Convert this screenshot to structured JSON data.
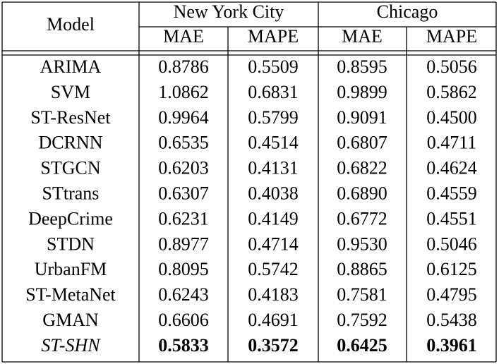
{
  "table": {
    "header": {
      "model": "Model",
      "groups": [
        "New York City",
        "Chicago"
      ],
      "metrics": [
        "MAE",
        "MAPE",
        "MAE",
        "MAPE"
      ]
    },
    "rows": [
      {
        "model": "ARIMA",
        "values": [
          "0.8786",
          "0.5509",
          "0.8595",
          "0.5056"
        ]
      },
      {
        "model": "SVM",
        "values": [
          "1.0862",
          "0.6831",
          "0.9899",
          "0.5862"
        ]
      },
      {
        "model": "ST-ResNet",
        "values": [
          "0.9964",
          "0.5799",
          "0.9091",
          "0.4500"
        ]
      },
      {
        "model": "DCRNN",
        "values": [
          "0.6535",
          "0.4514",
          "0.6807",
          "0.4711"
        ]
      },
      {
        "model": "STGCN",
        "values": [
          "0.6203",
          "0.4131",
          "0.6822",
          "0.4624"
        ]
      },
      {
        "model": "STtrans",
        "values": [
          "0.6307",
          "0.4038",
          "0.6890",
          "0.4559"
        ]
      },
      {
        "model": "DeepCrime",
        "values": [
          "0.6231",
          "0.4149",
          "0.6772",
          "0.4551"
        ]
      },
      {
        "model": "STDN",
        "values": [
          "0.8977",
          "0.4714",
          "0.9530",
          "0.5046"
        ]
      },
      {
        "model": "UrbanFM",
        "values": [
          "0.8095",
          "0.5742",
          "0.8865",
          "0.6125"
        ]
      },
      {
        "model": "ST-MetaNet",
        "values": [
          "0.6243",
          "0.4183",
          "0.7581",
          "0.4795"
        ]
      },
      {
        "model": "GMAN",
        "values": [
          "0.6606",
          "0.4691",
          "0.7592",
          "0.5438"
        ]
      },
      {
        "model": "ST-SHN",
        "values": [
          "0.5833",
          "0.3572",
          "0.6425",
          "0.3961"
        ]
      }
    ]
  }
}
